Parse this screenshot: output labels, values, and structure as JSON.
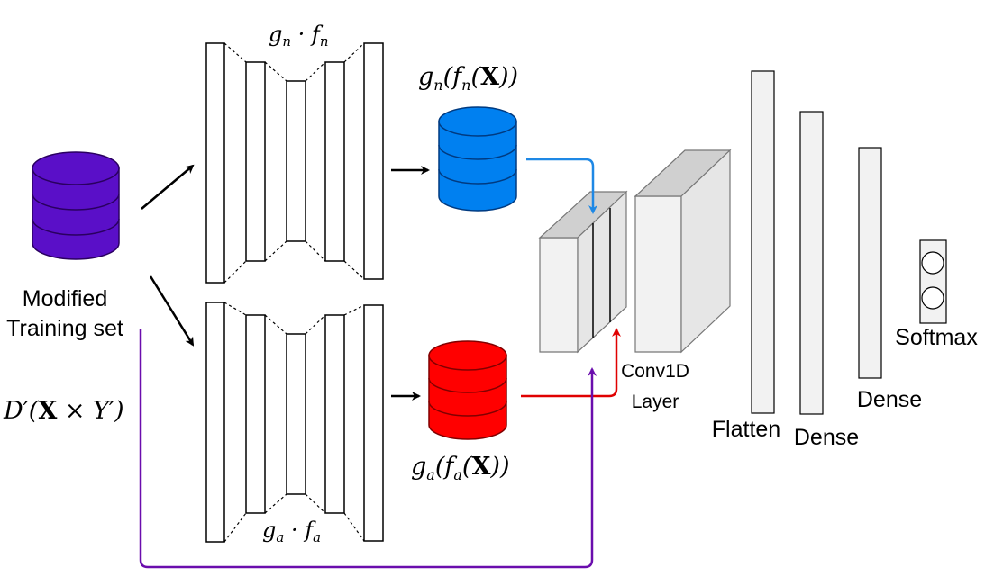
{
  "labels": {
    "training_set_line1": "Modified",
    "training_set_line2": "Training set",
    "dataset_symbol": "D′(X × Y′)",
    "normal_ae": "gn · fn",
    "anomaly_ae": "ga · fa",
    "normal_output": "gn(fn(X))",
    "anomaly_output": "ga(fa(X))",
    "conv_line1": "Conv1D",
    "conv_line2": "Layer",
    "flatten": "Flatten",
    "dense1": "Dense",
    "dense2": "Dense",
    "softmax": "Softmax"
  },
  "colors": {
    "training_db": "#5a0fc8",
    "normal_db": "#0080f0",
    "anomaly_db": "#ff0000",
    "normal_arrow": "#1e88e5",
    "anomaly_arrow": "#e00000",
    "bypass_arrow": "#6a0dad"
  }
}
